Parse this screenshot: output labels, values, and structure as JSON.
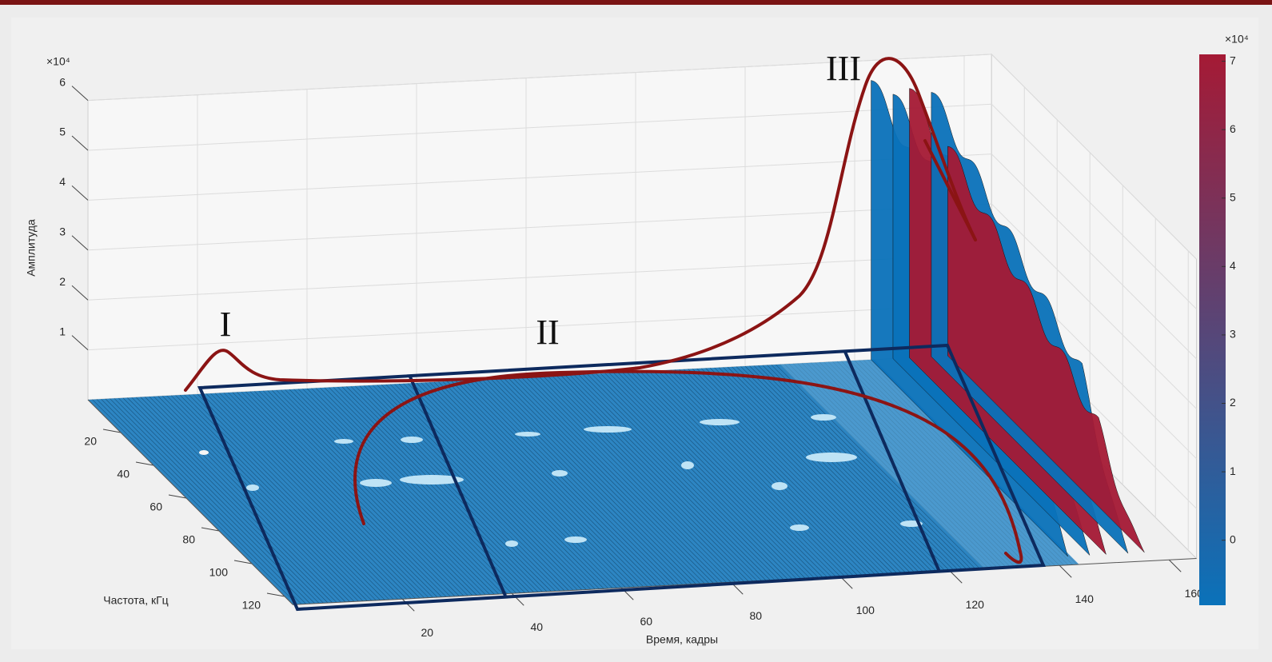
{
  "chart_data": {
    "type": "surface",
    "xlabel": "Время, кадры",
    "ylabel": "Частота, кГц",
    "zlabel": "Амплитуда",
    "xlim": [
      0,
      165
    ],
    "ylim": [
      0,
      125
    ],
    "zlim": [
      0,
      6
    ],
    "xticks": [
      20,
      40,
      60,
      80,
      100,
      120,
      140,
      160
    ],
    "yticks": [
      20,
      40,
      60,
      80,
      100,
      120
    ],
    "zticks": [
      1,
      2,
      3,
      4,
      5,
      6
    ],
    "z_scale_label": "×10⁴",
    "grid": true,
    "surface_colors": [
      "#0a72ba",
      "#a51a35"
    ],
    "colorbar": {
      "clim": [
        -0.95,
        7.1
      ],
      "ticks": [
        0,
        1,
        2,
        3,
        4,
        5,
        6,
        7
      ],
      "scale_label": "×10⁴"
    },
    "annotations": [
      "I",
      "II",
      "III"
    ]
  }
}
